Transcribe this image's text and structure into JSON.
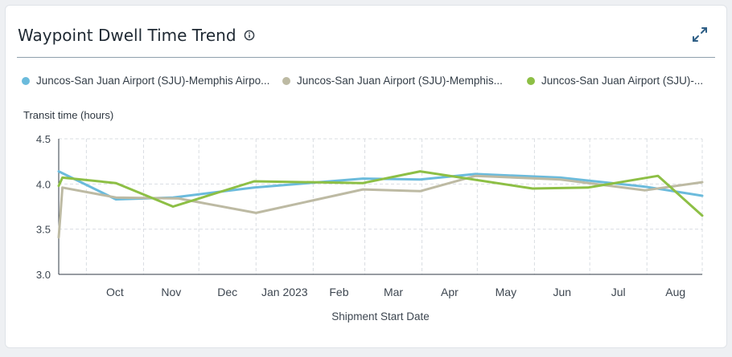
{
  "card": {
    "title": "Waypoint Dwell Time Trend",
    "info_icon": "info-circle-icon",
    "expand_icon": "expand-arrows-icon"
  },
  "legend": {
    "items": [
      {
        "label": "Juncos-San Juan Airport (SJU)-Memphis Airpo...",
        "color": "#6bbbdc"
      },
      {
        "label": "Juncos-San Juan Airport (SJU)-Memphis...",
        "color": "#bdbaa3"
      },
      {
        "label": "Juncos-San Juan Airport (SJU)-...",
        "color": "#8dbf45"
      }
    ]
  },
  "chart_data": {
    "type": "line",
    "ylabel": "Transit time (hours)",
    "xlabel": "Shipment Start Date",
    "ylim": [
      3.0,
      4.5
    ],
    "yticks": [
      "3.0",
      "3.5",
      "4.0",
      "4.5"
    ],
    "x_axis": {
      "start": "2022-09-16",
      "end": "2023-08-31",
      "tick_labels": [
        {
          "label": "Oct",
          "date": "2022-10-01"
        },
        {
          "label": "Nov",
          "date": "2022-11-01"
        },
        {
          "label": "Dec",
          "date": "2022-12-01"
        },
        {
          "label": "Jan 2023",
          "date": "2023-01-01"
        },
        {
          "label": "Feb",
          "date": "2023-02-01"
        },
        {
          "label": "Mar",
          "date": "2023-03-01"
        },
        {
          "label": "Apr",
          "date": "2023-04-01"
        },
        {
          "label": "May",
          "date": "2023-05-01"
        },
        {
          "label": "Jun",
          "date": "2023-06-01"
        },
        {
          "label": "Jul",
          "date": "2023-07-01"
        },
        {
          "label": "Aug",
          "date": "2023-08-01"
        }
      ]
    },
    "grid": true,
    "legend_position": "top",
    "series": [
      {
        "name": "Juncos-San Juan Airport (SJU)-Memphis Airpo...",
        "color": "#6bbbdc",
        "points": [
          [
            "2022-09-16",
            4.14
          ],
          [
            "2022-10-17",
            3.83
          ],
          [
            "2022-11-17",
            3.85
          ],
          [
            "2022-12-31",
            3.96
          ],
          [
            "2023-02-28",
            4.06
          ],
          [
            "2023-03-31",
            4.05
          ],
          [
            "2023-04-30",
            4.11
          ],
          [
            "2023-06-15",
            4.07
          ],
          [
            "2023-07-31",
            3.97
          ],
          [
            "2023-08-31",
            3.87
          ]
        ]
      },
      {
        "name": "Juncos-San Juan Airport (SJU)-Memphis...",
        "color": "#bdbaa3",
        "points": [
          [
            "2022-09-16",
            3.41
          ],
          [
            "2022-09-18",
            3.96
          ],
          [
            "2022-10-17",
            3.85
          ],
          [
            "2022-11-20",
            3.84
          ],
          [
            "2023-01-01",
            3.68
          ],
          [
            "2023-02-28",
            3.94
          ],
          [
            "2023-03-31",
            3.92
          ],
          [
            "2023-04-30",
            4.09
          ],
          [
            "2023-06-15",
            4.05
          ],
          [
            "2023-07-31",
            3.93
          ],
          [
            "2023-08-31",
            4.02
          ]
        ]
      },
      {
        "name": "Juncos-San Juan Airport (SJU)-...",
        "color": "#8dbf45",
        "points": [
          [
            "2022-09-16",
            3.98
          ],
          [
            "2022-09-18",
            4.07
          ],
          [
            "2022-10-17",
            4.01
          ],
          [
            "2022-11-17",
            3.75
          ],
          [
            "2022-12-31",
            4.03
          ],
          [
            "2023-02-28",
            4.01
          ],
          [
            "2023-03-31",
            4.14
          ],
          [
            "2023-05-31",
            3.95
          ],
          [
            "2023-06-30",
            3.96
          ],
          [
            "2023-08-07",
            4.09
          ],
          [
            "2023-08-31",
            3.65
          ]
        ]
      }
    ]
  }
}
